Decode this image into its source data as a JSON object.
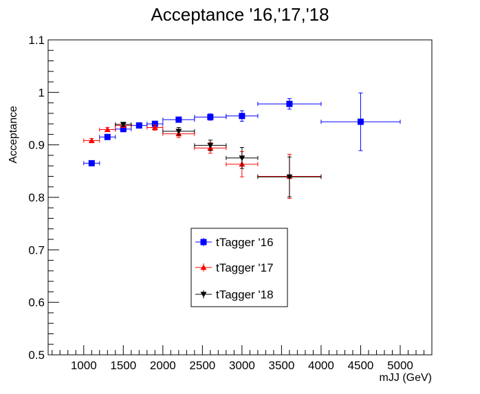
{
  "chart_data": {
    "type": "scatter",
    "title": "Acceptance '16,'17,'18",
    "xlabel": "mJJ (GeV)",
    "ylabel": "Acceptance",
    "xlim": [
      550,
      5400
    ],
    "ylim": [
      0.5,
      1.1
    ],
    "x_ticks": [
      1000,
      1500,
      2000,
      2500,
      3000,
      3500,
      4000,
      4500,
      5000
    ],
    "x_tick_labels": [
      "1000",
      "1500",
      "2000",
      "2500",
      "3000",
      "3500",
      "4000",
      "4500",
      "5000"
    ],
    "y_ticks": [
      0.5,
      0.6,
      0.7,
      0.8,
      0.9,
      1.0,
      1.1
    ],
    "y_tick_labels": [
      "0.5",
      "0.6",
      "0.7",
      "0.8",
      "0.9",
      "1",
      "1.1"
    ],
    "legend_position": "center",
    "series": [
      {
        "name": "tTagger '16",
        "color": "#0000ff",
        "marker": "square",
        "points": [
          {
            "x": 1100,
            "xerr": 100,
            "y": 0.865,
            "yerr": 0.003
          },
          {
            "x": 1300,
            "xerr": 100,
            "y": 0.915,
            "yerr": 0.004
          },
          {
            "x": 1500,
            "xerr": 100,
            "y": 0.93,
            "yerr": 0.004
          },
          {
            "x": 1700,
            "xerr": 100,
            "y": 0.937,
            "yerr": 0.004
          },
          {
            "x": 1900,
            "xerr": 100,
            "y": 0.94,
            "yerr": 0.005
          },
          {
            "x": 2200,
            "xerr": 200,
            "y": 0.948,
            "yerr": 0.004
          },
          {
            "x": 2600,
            "xerr": 200,
            "y": 0.953,
            "yerr": 0.006
          },
          {
            "x": 3000,
            "xerr": 200,
            "y": 0.955,
            "yerr": 0.01
          },
          {
            "x": 3600,
            "xerr": 400,
            "y": 0.978,
            "yerr": 0.01
          },
          {
            "x": 4500,
            "xerr": 500,
            "y": 0.944,
            "yerr": 0.055
          }
        ]
      },
      {
        "name": "tTagger '17",
        "color": "#ff0000",
        "marker": "triangle-up",
        "points": [
          {
            "x": 1100,
            "xerr": 100,
            "y": 0.908,
            "yerr": 0.004
          },
          {
            "x": 1300,
            "xerr": 100,
            "y": 0.929,
            "yerr": 0.004
          },
          {
            "x": 1500,
            "xerr": 100,
            "y": 0.937,
            "yerr": 0.004
          },
          {
            "x": 1900,
            "xerr": 100,
            "y": 0.933,
            "yerr": 0.005
          },
          {
            "x": 2200,
            "xerr": 200,
            "y": 0.921,
            "yerr": 0.007
          },
          {
            "x": 2600,
            "xerr": 200,
            "y": 0.894,
            "yerr": 0.01
          },
          {
            "x": 3000,
            "xerr": 200,
            "y": 0.863,
            "yerr": 0.024
          },
          {
            "x": 3600,
            "xerr": 400,
            "y": 0.84,
            "yerr": 0.042
          }
        ]
      },
      {
        "name": "tTagger '18",
        "color": "#000000",
        "marker": "triangle-down",
        "points": [
          {
            "x": 1500,
            "xerr": 100,
            "y": 0.939,
            "yerr": 0.004
          },
          {
            "x": 2200,
            "xerr": 200,
            "y": 0.926,
            "yerr": 0.007
          },
          {
            "x": 2600,
            "xerr": 200,
            "y": 0.899,
            "yerr": 0.01
          },
          {
            "x": 3000,
            "xerr": 200,
            "y": 0.875,
            "yerr": 0.02
          },
          {
            "x": 3600,
            "xerr": 400,
            "y": 0.839,
            "yerr": 0.038
          }
        ]
      }
    ]
  }
}
